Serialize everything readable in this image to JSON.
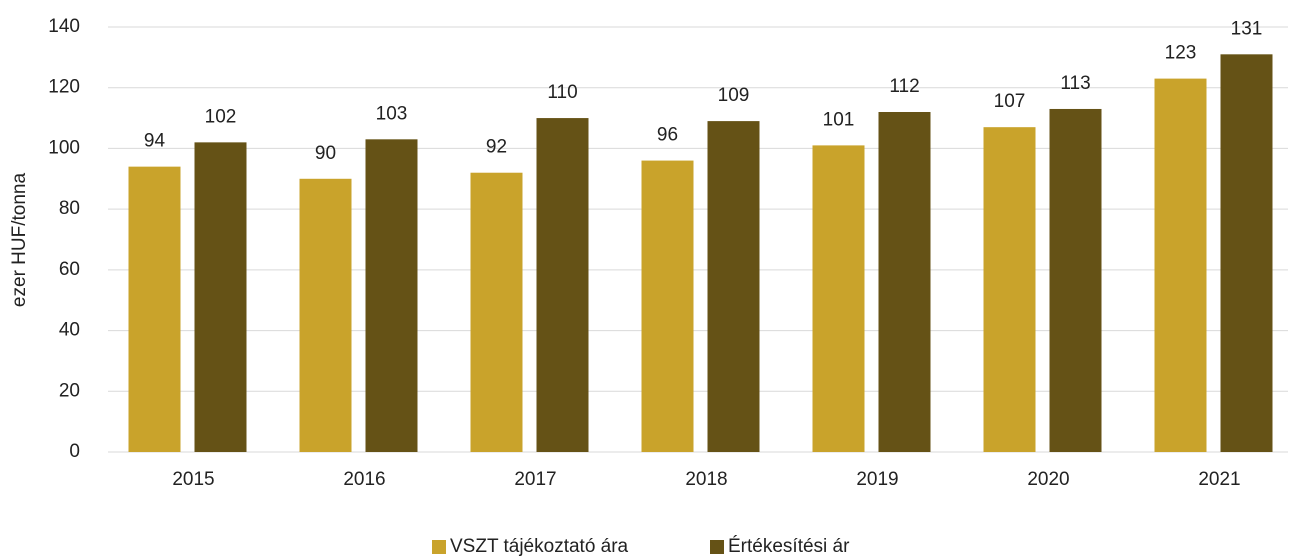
{
  "chart_data": {
    "type": "bar",
    "y_label": "ezer HUF/tonna",
    "categories": [
      "2015",
      "2016",
      "2017",
      "2018",
      "2019",
      "2020",
      "2021"
    ],
    "series": [
      {
        "name": "VSZT tájékoztató ára",
        "color": "#c9a32b",
        "values": [
          94,
          90,
          92,
          96,
          101,
          107,
          123
        ]
      },
      {
        "name": "Értékesítési ár",
        "color": "#655216",
        "values": [
          102,
          103,
          110,
          109,
          112,
          113,
          131
        ]
      }
    ],
    "ylim": [
      0,
      140
    ],
    "yticks": [
      0,
      20,
      40,
      60,
      80,
      100,
      120,
      140
    ],
    "grid": true,
    "legend": "bottom"
  }
}
